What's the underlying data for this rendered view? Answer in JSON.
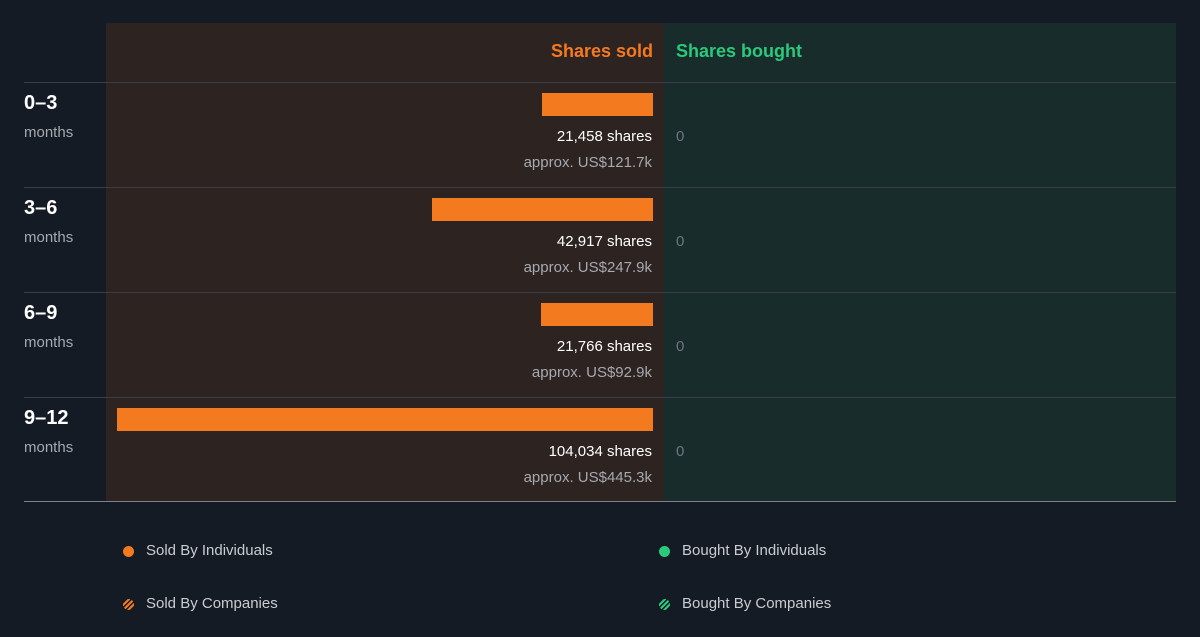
{
  "chart_data": {
    "type": "bar",
    "headers": {
      "sold": "Shares sold",
      "bought": "Shares bought"
    },
    "categories": [
      {
        "period": "0–3",
        "unit": "months"
      },
      {
        "period": "3–6",
        "unit": "months"
      },
      {
        "period": "6–9",
        "unit": "months"
      },
      {
        "period": "9–12",
        "unit": "months"
      }
    ],
    "series": [
      {
        "name": "Shares sold",
        "values": [
          21458,
          42917,
          21766,
          104034
        ],
        "shares_labels": [
          "21,458 shares",
          "42,917 shares",
          "21,766 shares",
          "104,034 shares"
        ],
        "value_labels": [
          "approx. US$121.7k",
          "approx. US$247.9k",
          "approx. US$92.9k",
          "approx. US$445.3k"
        ]
      },
      {
        "name": "Shares bought",
        "values": [
          0,
          0,
          0,
          0
        ],
        "shares_labels": [
          "0",
          "0",
          "0",
          "0"
        ]
      }
    ],
    "legend": [
      {
        "label": "Sold By Individuals",
        "style": "solid",
        "color": "#f47a20"
      },
      {
        "label": "Bought By Individuals",
        "style": "solid",
        "color": "#2bc97a"
      },
      {
        "label": "Sold By Companies",
        "style": "hatched",
        "color": "#f47a20"
      },
      {
        "label": "Bought By Companies",
        "style": "hatched",
        "color": "#2bc97a"
      }
    ],
    "colors": {
      "sold": "#f47a20",
      "bought": "#2bc97a",
      "sold_panel": "#2d2321",
      "bought_panel": "#182c2b",
      "background": "#151b24"
    }
  }
}
